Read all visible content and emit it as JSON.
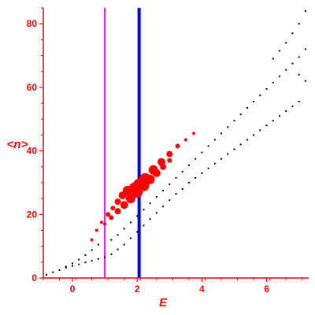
{
  "chart_data": {
    "type": "scatter",
    "xlabel": "E",
    "ylabel": "<n>",
    "xlim": [
      -0.9,
      7.3
    ],
    "ylim": [
      0,
      85
    ],
    "x_ticks": [
      0,
      2,
      4,
      6
    ],
    "y_ticks": [
      0,
      20,
      40,
      60,
      80
    ],
    "grid": false,
    "axis_color": "#ff0000",
    "vertical_lines": [
      {
        "x": 1.0,
        "color": "#ff00ff"
      },
      {
        "x": 2.06,
        "color": "#0000ff"
      }
    ],
    "series": [
      {
        "marker_color": "#000000",
        "points": [
          [
            -0.8,
            1
          ],
          [
            -0.6,
            1.8
          ],
          [
            -0.4,
            2.5
          ],
          [
            -0.2,
            3.2
          ],
          [
            0.0,
            3.8
          ],
          [
            0.2,
            4.3
          ],
          [
            0.4,
            4.9
          ],
          [
            0.6,
            5.4
          ],
          [
            0.8,
            6.0
          ],
          [
            1.0,
            6.5
          ],
          [
            1.2,
            7.5
          ],
          [
            1.4,
            9.0
          ],
          [
            1.6,
            10.5
          ],
          [
            1.8,
            12.5
          ],
          [
            2.0,
            14.5
          ],
          [
            2.2,
            16.5
          ],
          [
            2.4,
            18.5
          ],
          [
            2.6,
            20.5
          ],
          [
            2.8,
            22.5
          ],
          [
            3.0,
            24.5
          ],
          [
            3.2,
            26.5
          ],
          [
            3.4,
            28.0
          ],
          [
            3.6,
            30.0
          ],
          [
            3.8,
            31.5
          ],
          [
            4.0,
            33.0
          ],
          [
            4.2,
            34.5
          ],
          [
            4.4,
            36.0
          ],
          [
            4.6,
            37.5
          ],
          [
            4.8,
            39.0
          ],
          [
            5.0,
            40.5
          ],
          [
            5.2,
            42.0
          ],
          [
            5.4,
            43.5
          ],
          [
            5.6,
            45.0
          ],
          [
            5.8,
            46.5
          ],
          [
            6.0,
            48.0
          ],
          [
            6.2,
            49.5
          ],
          [
            6.4,
            51.0
          ],
          [
            6.6,
            52.5
          ],
          [
            6.8,
            54.0
          ],
          [
            7.0,
            55.5
          ],
          [
            -0.2,
            3.6
          ],
          [
            0.0,
            4.6
          ],
          [
            0.2,
            5.8
          ],
          [
            0.4,
            7.2
          ],
          [
            0.6,
            8.8
          ],
          [
            0.8,
            10.5
          ],
          [
            1.2,
            12.0
          ],
          [
            1.4,
            13.5
          ],
          [
            1.6,
            15.5
          ],
          [
            1.8,
            17.5
          ],
          [
            2.0,
            19.5
          ],
          [
            2.2,
            21.5
          ],
          [
            2.4,
            23.5
          ],
          [
            2.6,
            25.5
          ],
          [
            2.8,
            27.5
          ],
          [
            3.0,
            29.5
          ],
          [
            3.2,
            31.5
          ],
          [
            3.4,
            33.5
          ],
          [
            3.6,
            35.5
          ],
          [
            3.8,
            37.5
          ],
          [
            4.0,
            39.5
          ],
          [
            4.2,
            41.5
          ],
          [
            4.4,
            43.5
          ],
          [
            4.6,
            45.5
          ],
          [
            4.8,
            47.5
          ],
          [
            5.0,
            49.5
          ],
          [
            5.2,
            51.5
          ],
          [
            5.4,
            53.5
          ],
          [
            5.6,
            55.5
          ],
          [
            5.8,
            57.5
          ],
          [
            6.0,
            59.5
          ],
          [
            6.2,
            61.5
          ],
          [
            6.4,
            63.5
          ],
          [
            6.6,
            65.5
          ],
          [
            6.8,
            67.5
          ],
          [
            7.0,
            69.5
          ],
          [
            7.2,
            84
          ],
          [
            7.0,
            80
          ],
          [
            6.8,
            77
          ],
          [
            6.6,
            74
          ],
          [
            6.4,
            71.5
          ],
          [
            6.2,
            69
          ],
          [
            7.2,
            72
          ],
          [
            7.0,
            64
          ],
          [
            7.2,
            62
          ]
        ]
      },
      {
        "marker_color": "#ff0000",
        "points": [
          [
            0.6,
            12,
            1
          ],
          [
            0.75,
            15,
            1
          ],
          [
            0.9,
            17.5,
            1
          ],
          [
            1.1,
            20,
            2
          ],
          [
            1.25,
            22,
            2
          ],
          [
            1.4,
            24,
            3
          ],
          [
            1.55,
            26,
            4
          ],
          [
            1.7,
            27.5,
            5
          ],
          [
            1.9,
            28.5,
            5
          ],
          [
            2.05,
            29.5,
            6
          ],
          [
            2.25,
            31,
            7
          ],
          [
            2.5,
            34,
            5
          ],
          [
            2.75,
            36.5,
            4
          ],
          [
            3.0,
            39,
            3
          ],
          [
            3.25,
            41.5,
            2
          ],
          [
            3.5,
            43.5,
            1
          ],
          [
            3.75,
            45.5,
            1
          ],
          [
            1.0,
            17,
            1
          ],
          [
            1.2,
            19,
            2
          ],
          [
            1.4,
            21,
            3
          ],
          [
            1.6,
            23,
            4
          ],
          [
            1.8,
            25,
            5
          ],
          [
            2.0,
            27,
            6
          ],
          [
            2.2,
            29,
            6
          ],
          [
            2.4,
            31,
            5
          ],
          [
            2.6,
            33,
            4
          ],
          [
            2.8,
            35,
            3
          ],
          [
            3.0,
            37,
            2
          ]
        ]
      }
    ]
  }
}
